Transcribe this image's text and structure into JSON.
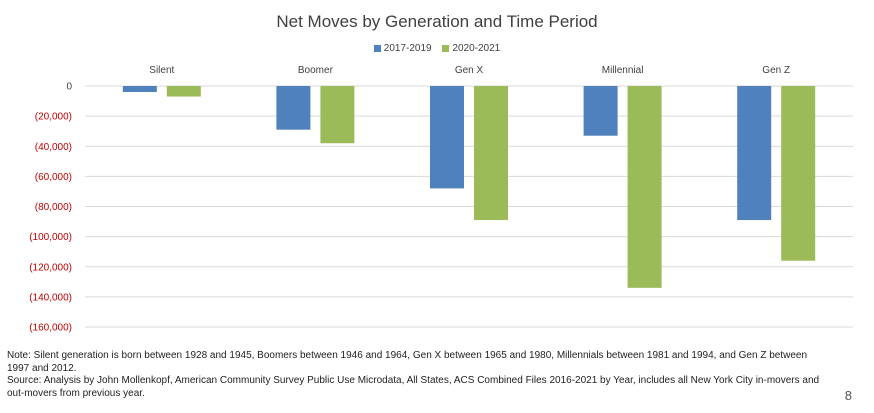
{
  "chart_data": {
    "type": "bar",
    "title": "Net Moves by Generation and Time Period",
    "categories": [
      "Silent",
      "Boomer",
      "Gen X",
      "Millennial",
      "Gen Z"
    ],
    "series": [
      {
        "name": "2017-2019",
        "color": "#4f81bd",
        "values": [
          -4000,
          -29000,
          -68000,
          -33000,
          -89000
        ]
      },
      {
        "name": "2020-2021",
        "color": "#9bbb59",
        "values": [
          -7000,
          -38000,
          -89000,
          -134000,
          -116000
        ]
      }
    ],
    "ylim": [
      -160000,
      0
    ],
    "yticks": [
      0,
      -20000,
      -40000,
      -60000,
      -80000,
      -100000,
      -120000,
      -140000,
      -160000
    ],
    "ytick_labels": [
      "0",
      "(20,000)",
      "(40,000)",
      "(60,000)",
      "(80,000)",
      "(100,000)",
      "(120,000)",
      "(140,000)",
      "(160,000)"
    ],
    "ytick_color_negative": "#c00000",
    "ytick_color_zero": "#404040",
    "grid": true,
    "legend": "top-center",
    "category_labels_position": "top"
  },
  "notes": {
    "note": "Note: Silent generation is born between 1928 and 1945, Boomers between 1946 and 1964, Gen X between 1965 and 1980, Millennials between 1981 and 1994, and Gen Z between 1997 and 2012.",
    "source": "Source: Analysis by John Mollenkopf, American Community Survey Public Use Microdata, All States, ACS Combined Files 2016-2021 by Year, includes all New York City in-movers and out-movers from previous year."
  },
  "page_number": "8"
}
